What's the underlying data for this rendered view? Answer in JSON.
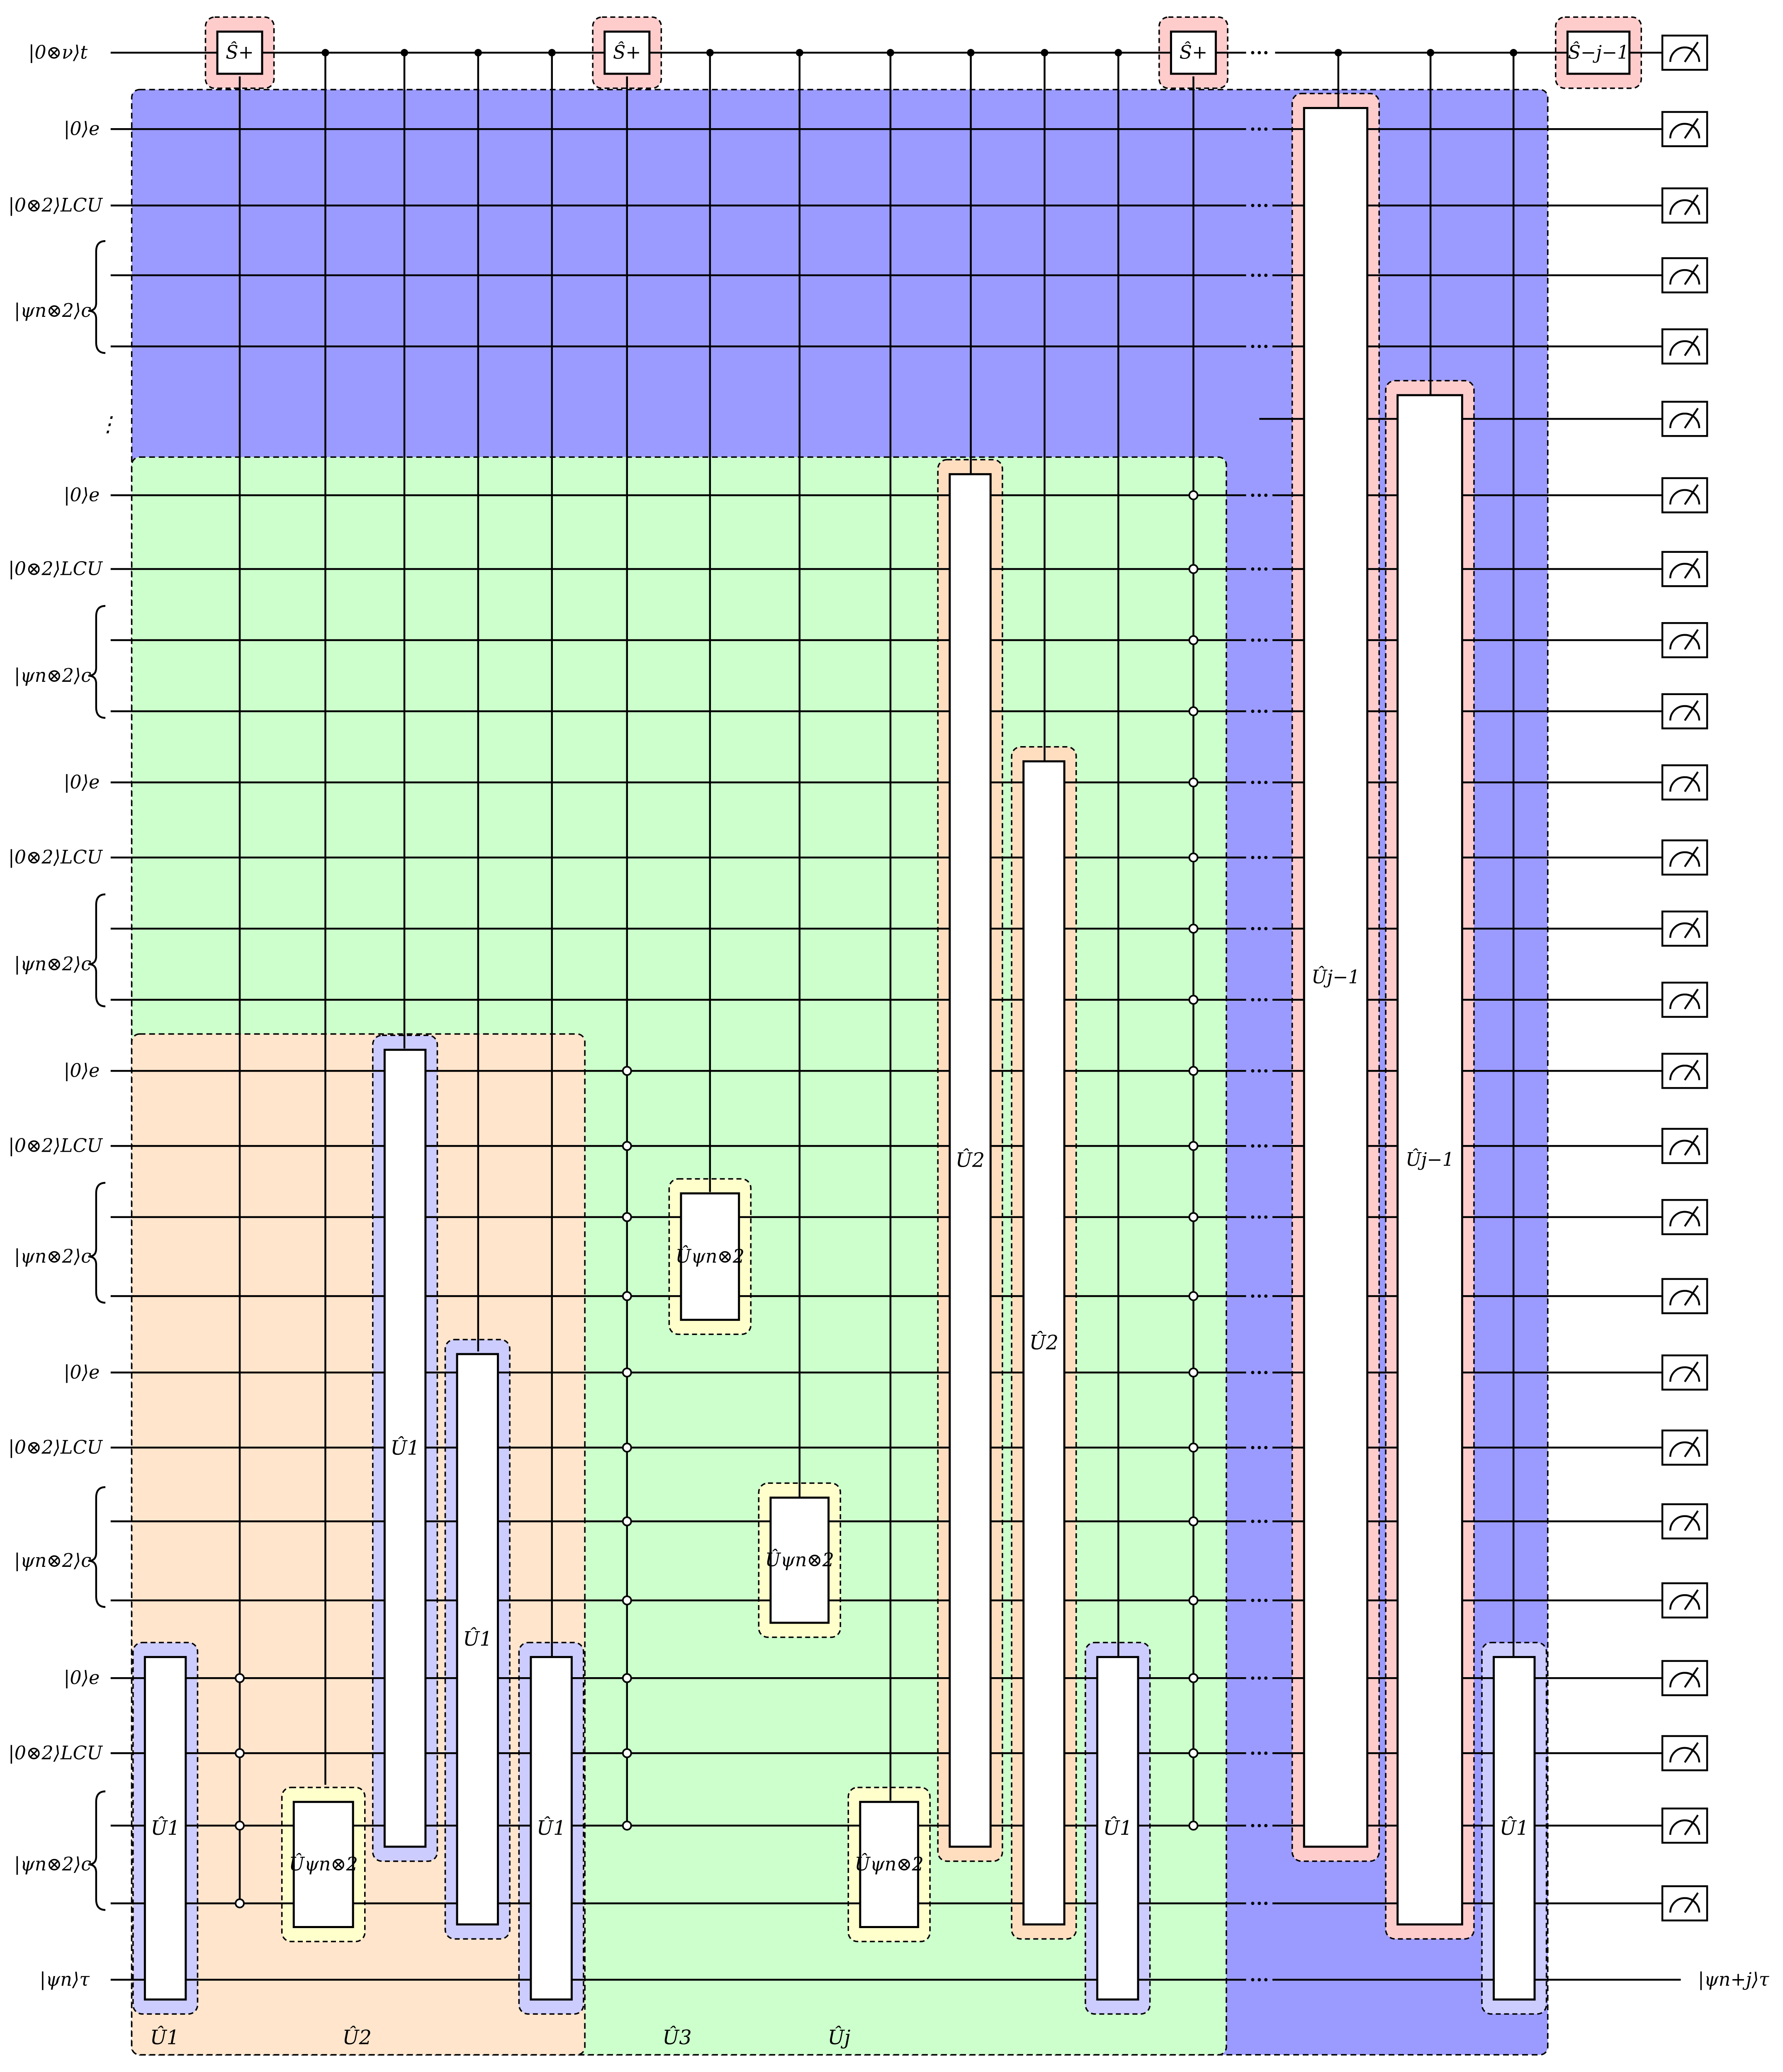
{
  "colors": {
    "outer_region": "#9b9bff",
    "middle_region": "#ccffcc",
    "inner_region": "#ffe5cc",
    "halo_blue": "#ccccff",
    "halo_yellow": "#ffffcc",
    "halo_orange": "#ffdec0",
    "halo_pink": "#ffcccc",
    "wire": "#000000"
  },
  "register_labels": {
    "time": "|0⊗ν⟩t",
    "e": "|0⟩e",
    "lcu": "|0⊗2⟩LCU",
    "psi": "|ψn⊗2⟩c",
    "vdots": "⋮",
    "state_in": "|ψn⟩τ",
    "state_out": "|ψn+j⟩τ"
  },
  "gate_labels": {
    "U1": "Û1",
    "U2": "Û2",
    "Upsi": "Ûψn⊗2",
    "Ujm1": "Ûj−1",
    "S_plus": "Ŝ+",
    "S_minus": "Ŝ−j−1"
  },
  "bottom_labels": [
    "Û1",
    "Û2",
    "Û3",
    "Ûj"
  ],
  "meter_icon": "measurement-meter-icon"
}
